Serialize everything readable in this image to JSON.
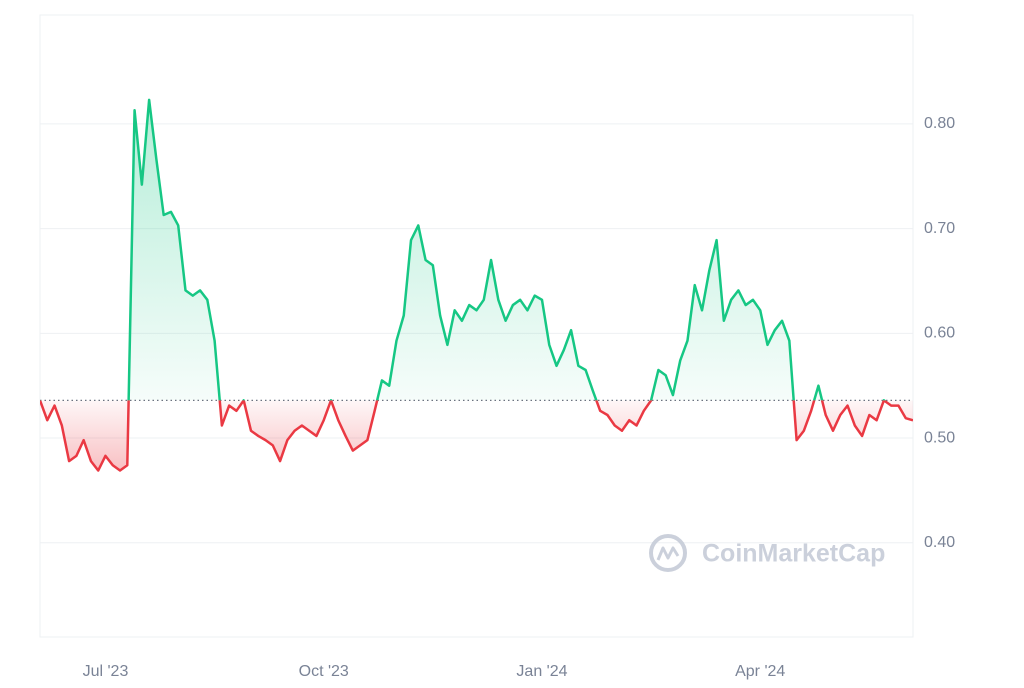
{
  "chart_data": {
    "type": "line",
    "watermark": "CoinMarketCap",
    "categories": [
      null,
      null,
      null,
      null,
      null,
      null,
      null,
      null,
      null,
      "Jul '23",
      null,
      null,
      null,
      null,
      null,
      null,
      null,
      null,
      null,
      null,
      null,
      null,
      null,
      null,
      null,
      null,
      null,
      null,
      null,
      null,
      null,
      null,
      null,
      null,
      null,
      null,
      null,
      null,
      null,
      "Oct '23",
      null,
      null,
      null,
      null,
      null,
      null,
      null,
      null,
      null,
      null,
      null,
      null,
      null,
      null,
      null,
      null,
      null,
      null,
      null,
      null,
      null,
      null,
      null,
      null,
      null,
      null,
      null,
      null,
      null,
      "Jan '24",
      null,
      null,
      null,
      null,
      null,
      null,
      null,
      null,
      null,
      null,
      null,
      null,
      null,
      null,
      null,
      null,
      null,
      null,
      null,
      null,
      null,
      null,
      null,
      null,
      null,
      null,
      null,
      null,
      null,
      "Apr '24",
      null,
      null,
      null,
      null,
      null,
      null,
      null,
      null,
      null,
      null,
      null,
      null,
      null,
      null,
      null,
      null,
      null,
      null,
      null,
      null,
      null
    ],
    "values": [
      0.536,
      0.517,
      0.531,
      0.512,
      0.478,
      0.483,
      0.498,
      0.478,
      0.469,
      0.483,
      0.474,
      0.469,
      0.474,
      0.813,
      0.742,
      0.823,
      0.766,
      0.713,
      0.716,
      0.703,
      0.641,
      0.636,
      0.641,
      0.632,
      0.593,
      0.512,
      0.531,
      0.526,
      0.536,
      0.507,
      0.502,
      0.498,
      0.493,
      0.478,
      0.498,
      0.507,
      0.512,
      0.507,
      0.502,
      0.517,
      0.536,
      0.517,
      0.502,
      0.488,
      0.493,
      0.498,
      0.526,
      0.555,
      0.55,
      0.593,
      0.617,
      0.689,
      0.703,
      0.67,
      0.665,
      0.617,
      0.589,
      0.622,
      0.612,
      0.627,
      0.622,
      0.632,
      0.67,
      0.632,
      0.612,
      0.627,
      0.632,
      0.622,
      0.636,
      0.632,
      0.589,
      0.569,
      0.584,
      0.603,
      0.569,
      0.565,
      0.545,
      0.526,
      0.522,
      0.512,
      0.507,
      0.517,
      0.512,
      0.526,
      0.536,
      0.565,
      0.56,
      0.541,
      0.574,
      0.593,
      0.646,
      0.622,
      0.66,
      0.689,
      0.612,
      0.632,
      0.641,
      0.627,
      0.632,
      0.622,
      0.589,
      0.603,
      0.612,
      0.593,
      0.498,
      0.507,
      0.526,
      0.55,
      0.522,
      0.507,
      0.522,
      0.531,
      0.512,
      0.502,
      0.522,
      0.517,
      0.536,
      0.531,
      0.531,
      0.519,
      0.517
    ],
    "up_color": "#16c784",
    "down_color": "#ea3943",
    "ylim": [
      0.31,
      0.904
    ],
    "yticks": [
      {
        "value": 0.4,
        "label": "0.40"
      },
      {
        "value": 0.5,
        "label": "0.50"
      },
      {
        "value": 0.6,
        "label": "0.60"
      },
      {
        "value": 0.7,
        "label": "0.70"
      },
      {
        "value": 0.8,
        "label": "0.80"
      }
    ],
    "grid": true
  }
}
